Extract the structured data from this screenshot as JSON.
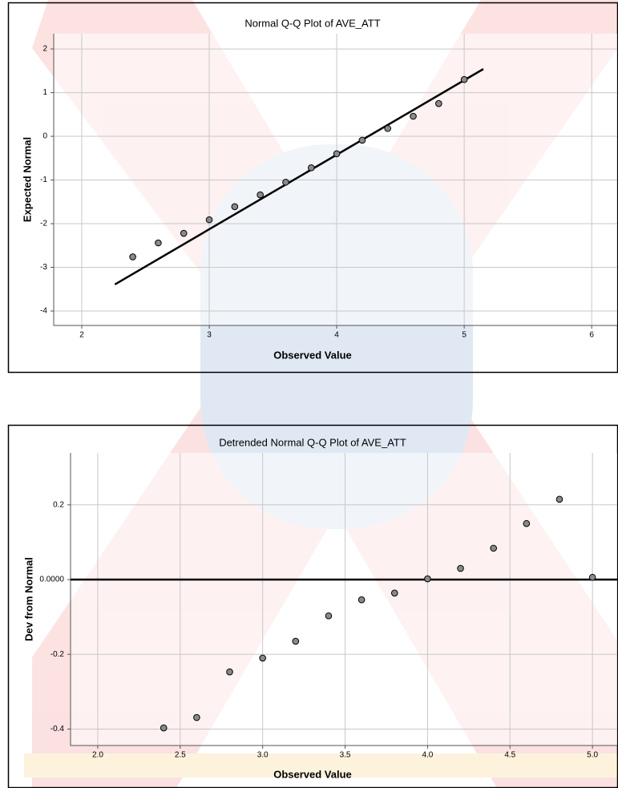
{
  "chart_data": [
    {
      "type": "scatter",
      "title": "Normal Q-Q Plot of AVE_ATT",
      "x_label": "Observed Value",
      "y_label": "Expected Normal",
      "x": [
        2.4,
        2.6,
        2.8,
        3.0,
        3.2,
        3.4,
        3.6,
        3.8,
        4.0,
        4.2,
        4.4,
        4.6,
        4.8,
        5.0
      ],
      "y": [
        -2.76,
        -2.44,
        -2.22,
        -1.91,
        -1.61,
        -1.34,
        -1.05,
        -0.72,
        -0.4,
        -0.09,
        0.18,
        0.46,
        0.75,
        1.3
      ],
      "marker_color": "#8a8a8a",
      "fit_line": {
        "x": [
          2.26,
          5.15
        ],
        "y": [
          -3.39,
          1.54
        ],
        "color": "#000000"
      },
      "xlim": [
        1.78,
        6.2
      ],
      "ylim": [
        -4.33,
        2.35
      ],
      "xticks": [
        2,
        3,
        4,
        5,
        6
      ],
      "yticks": [
        2,
        1,
        0,
        -1,
        -2,
        -3,
        -4
      ],
      "grid": true
    },
    {
      "type": "scatter",
      "title": "Detrended Normal Q-Q Plot of AVE_ATT",
      "x_label": "Observed Value",
      "y_label": "Dev from Normal",
      "x": [
        2.4,
        2.6,
        2.8,
        3.0,
        3.2,
        3.4,
        3.6,
        3.8,
        4.0,
        4.2,
        4.4,
        4.6,
        4.8,
        5.0
      ],
      "y": [
        -0.397,
        -0.369,
        -0.247,
        -0.21,
        -0.165,
        -0.097,
        -0.054,
        -0.036,
        0.002,
        0.03,
        0.084,
        0.15,
        0.215,
        0.006
      ],
      "marker_color": "#8a8a8a",
      "reference_y": 0,
      "reference_color": "#000000",
      "xlim": [
        1.835,
        5.15
      ],
      "ylim": [
        -0.444,
        0.339
      ],
      "xticks": [
        {
          "value": 2,
          "label": "2.0"
        },
        2.5,
        {
          "value": 3,
          "label": "3.0"
        },
        3.5,
        {
          "value": 4,
          "label": "4.0"
        },
        4.5,
        {
          "value": 5,
          "label": "5.0"
        }
      ],
      "yticks": [
        0.2,
        {
          "value": 0,
          "label": "0.0000"
        },
        -0.2,
        -0.4
      ],
      "grid": true
    }
  ]
}
